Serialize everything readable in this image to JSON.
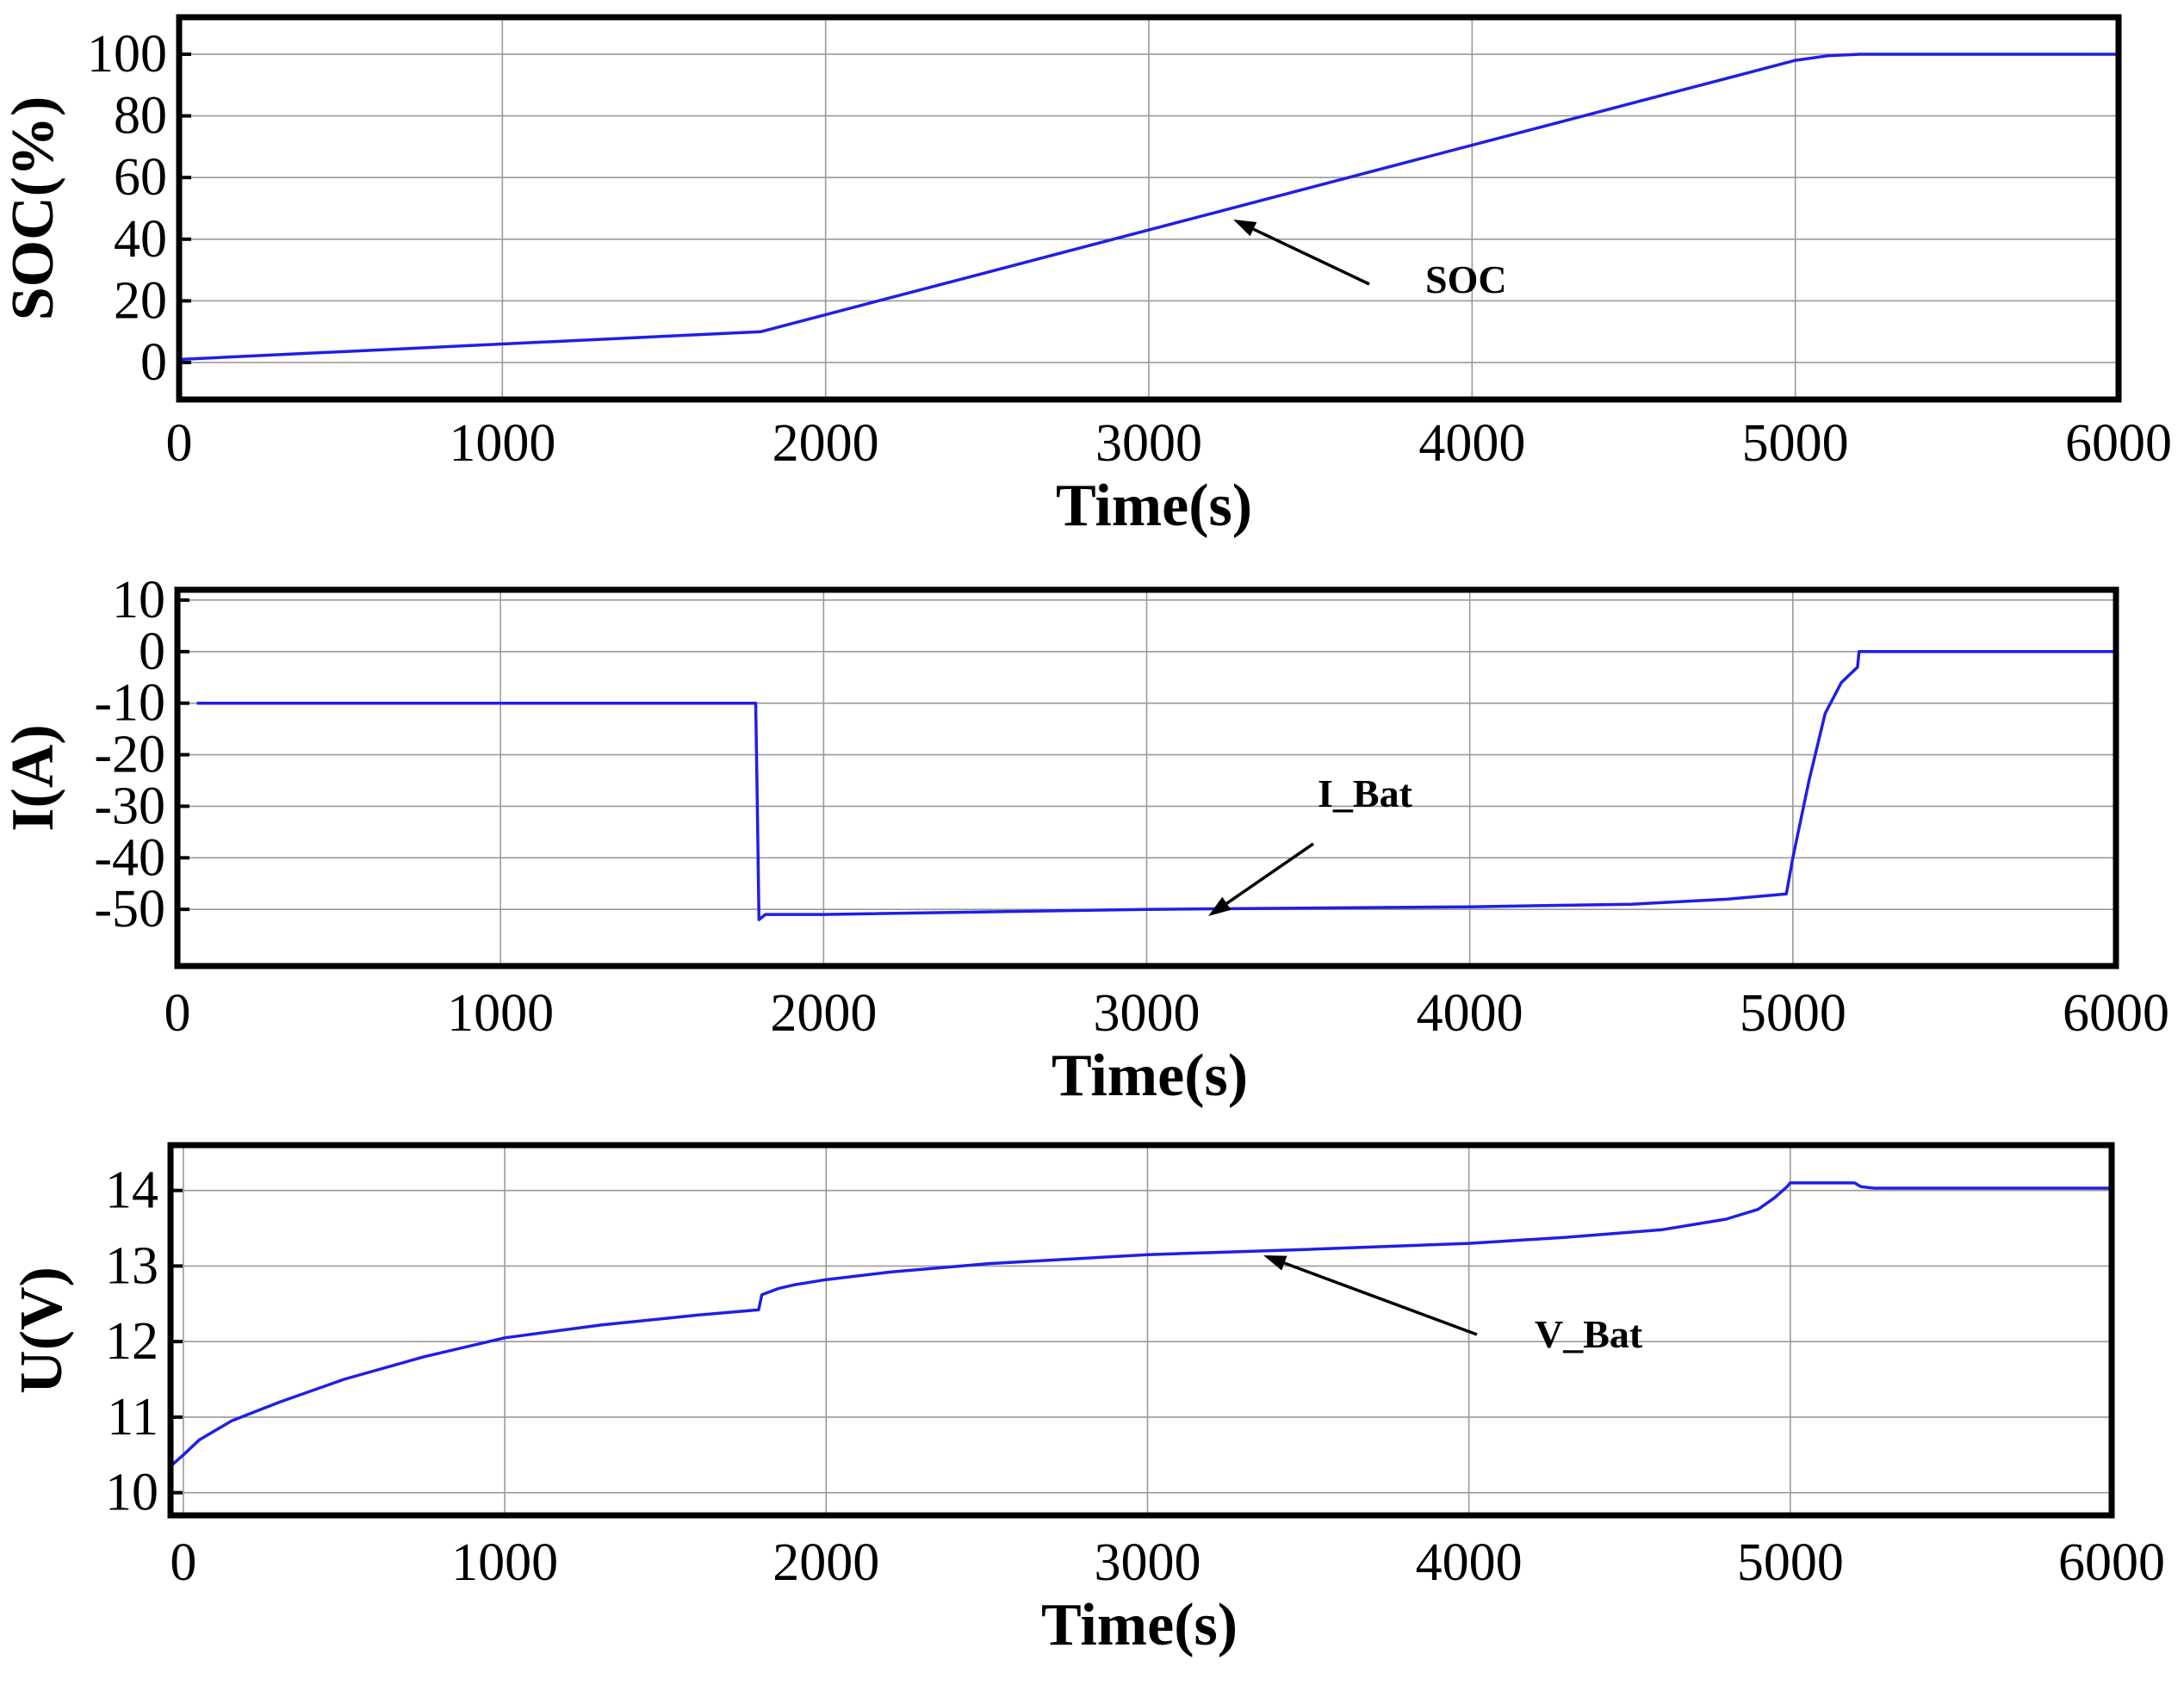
{
  "chart_data": [
    {
      "type": "line",
      "xlabel": "Time(s)",
      "ylabel": "SOC(%)",
      "xlim": [
        0,
        6000
      ],
      "ylim": [
        -12,
        112
      ],
      "xticks": [
        0,
        1000,
        2000,
        3000,
        4000,
        5000,
        6000
      ],
      "yticks": [
        0,
        20,
        40,
        60,
        80,
        100
      ],
      "grid": true,
      "series": [
        {
          "name": "SOC",
          "color": "#1f1fe6",
          "x": [
            0,
            1800,
            5000,
            5100,
            5200,
            6000
          ],
          "y": [
            1,
            10,
            98,
            99.5,
            100,
            100
          ]
        }
      ],
      "annotations": [
        {
          "text": "SOC",
          "x": 3300,
          "y": 48
        }
      ]
    },
    {
      "type": "line",
      "xlabel": "Time(s)",
      "ylabel": "I(A)",
      "xlim": [
        0,
        6000
      ],
      "ylim": [
        -61,
        12
      ],
      "xticks": [
        0,
        1000,
        2000,
        3000,
        4000,
        5000,
        6000
      ],
      "yticks": [
        10,
        0,
        -10,
        -20,
        -30,
        -40,
        -50
      ],
      "grid": true,
      "series": [
        {
          "name": "I_Bat",
          "color": "#1f1fe6",
          "x": [
            60,
            1790,
            1795,
            1800,
            1820,
            2000,
            3000,
            4000,
            4500,
            4800,
            4980,
            5000,
            5050,
            5100,
            5150,
            5200,
            5205,
            6000
          ],
          "y": [
            -10,
            -10,
            -30,
            -52,
            -51,
            -51,
            -50,
            -49.5,
            -49,
            -48,
            -47,
            -40,
            -25,
            -12,
            -6,
            -3,
            0,
            0
          ]
        }
      ],
      "annotations": [
        {
          "text": "I_Bat",
          "x": 3200,
          "y": -50
        }
      ]
    },
    {
      "type": "line",
      "xlabel": "Time(s)",
      "ylabel": "U(V)",
      "xlim": [
        -40,
        6000
      ],
      "ylim": [
        9.7,
        14.6
      ],
      "xticks": [
        0,
        1000,
        2000,
        3000,
        4000,
        5000,
        6000
      ],
      "yticks": [
        10,
        11,
        12,
        13,
        14
      ],
      "grid": true,
      "series": [
        {
          "name": "V_Bat",
          "color": "#1f1fe6",
          "x": [
            -40,
            0,
            50,
            150,
            300,
            500,
            750,
            1000,
            1300,
            1600,
            1790,
            1800,
            1850,
            1900,
            2000,
            2200,
            2500,
            3000,
            3500,
            4000,
            4300,
            4600,
            4800,
            4900,
            4950,
            4990,
            5000,
            5200,
            5220,
            5260,
            6000
          ],
          "y": [
            10.35,
            10.5,
            10.7,
            10.95,
            11.2,
            11.5,
            11.8,
            12.05,
            12.22,
            12.35,
            12.42,
            12.62,
            12.7,
            12.75,
            12.82,
            12.92,
            13.03,
            13.15,
            13.22,
            13.3,
            13.38,
            13.48,
            13.62,
            13.75,
            13.9,
            14.05,
            14.1,
            14.1,
            14.05,
            14.03,
            14.03
          ]
        }
      ],
      "annotations": [
        {
          "text": "V_Bat",
          "x": 3380,
          "y": 13.2
        }
      ]
    }
  ]
}
